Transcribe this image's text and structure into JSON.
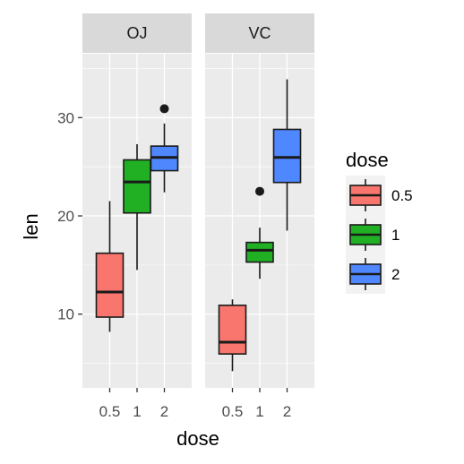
{
  "chart_data": {
    "type": "boxplot",
    "xlabel": "dose",
    "ylabel": "len",
    "ylim": [
      2.5,
      36.5
    ],
    "yticks": [
      10,
      20,
      30
    ],
    "categories": [
      "0.5",
      "1",
      "2"
    ],
    "grid": true,
    "legend": {
      "title": "dose",
      "position": "right",
      "entries": [
        {
          "label": "0.5",
          "color": "#f8766d"
        },
        {
          "label": "1",
          "color": "#21b024"
        },
        {
          "label": "2",
          "color": "#4f87ff"
        }
      ]
    },
    "facets": [
      {
        "label": "OJ",
        "boxes": [
          {
            "x": "0.5",
            "min": 8.2,
            "q1": 9.7,
            "median": 12.25,
            "q3": 16.2,
            "max": 21.5,
            "outliers": []
          },
          {
            "x": "1",
            "min": 14.5,
            "q1": 20.3,
            "median": 23.45,
            "q3": 25.7,
            "max": 27.3,
            "outliers": []
          },
          {
            "x": "2",
            "min": 22.4,
            "q1": 24.6,
            "median": 25.95,
            "q3": 27.1,
            "max": 29.4,
            "outliers": [
              30.9
            ]
          }
        ]
      },
      {
        "label": "VC",
        "boxes": [
          {
            "x": "0.5",
            "min": 4.2,
            "q1": 5.95,
            "median": 7.15,
            "q3": 10.9,
            "max": 11.5,
            "outliers": []
          },
          {
            "x": "1",
            "min": 13.6,
            "q1": 15.3,
            "median": 16.5,
            "q3": 17.3,
            "max": 18.8,
            "outliers": [
              22.5
            ]
          },
          {
            "x": "2",
            "min": 18.5,
            "q1": 23.4,
            "median": 25.95,
            "q3": 28.8,
            "max": 33.9,
            "outliers": []
          }
        ]
      }
    ]
  },
  "colors": {
    "panel_bg": "#ebebeb",
    "strip_bg": "#d9d9d9",
    "grid_major": "#ffffff",
    "box_outline": "#1a1a1a"
  }
}
